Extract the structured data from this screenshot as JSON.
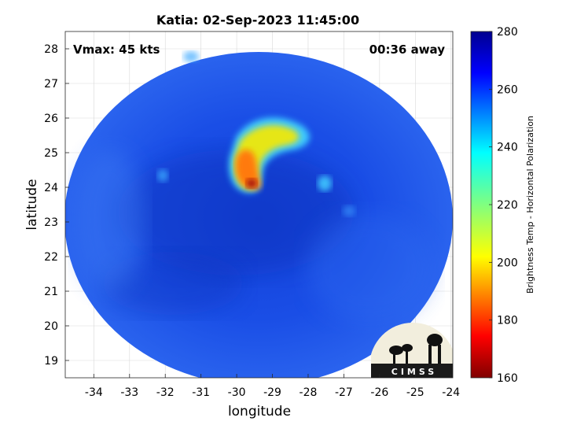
{
  "title": "Katia: 02-Sep-2023 11:45:00",
  "annotations": {
    "vmax": "Vmax: 45 kts",
    "away": "00:36 away"
  },
  "axes": {
    "xlabel": "longitude",
    "ylabel": "latitude",
    "xlim": [
      -34.8,
      -23.95
    ],
    "ylim": [
      18.5,
      28.5
    ],
    "xticks": [
      "-34",
      "-33",
      "-32",
      "-31",
      "-30",
      "-29",
      "-28",
      "-27",
      "-26",
      "-25",
      "-24"
    ],
    "xtick_values": [
      -34,
      -33,
      -32,
      -31,
      -30,
      -29,
      -28,
      -27,
      -26,
      -25,
      -24
    ],
    "yticks": [
      "19",
      "20",
      "21",
      "22",
      "23",
      "24",
      "25",
      "26",
      "27",
      "28"
    ],
    "ytick_values": [
      19,
      20,
      21,
      22,
      23,
      24,
      25,
      26,
      27,
      28
    ],
    "grid": true
  },
  "colorbar": {
    "label": "Brightness Temp - Horizontal Polarization",
    "range": [
      160,
      280
    ],
    "ticks": [
      "280",
      "260",
      "240",
      "220",
      "200",
      "180",
      "160"
    ],
    "tick_values": [
      280,
      260,
      240,
      220,
      200,
      180,
      160
    ],
    "colormap": "jet"
  },
  "storm": {
    "center_lon": -29.6,
    "center_lat": 24.0,
    "swath_center_lon": -29.35,
    "swath_center_lat": 23.65
  },
  "logo": {
    "text": "CIMSS"
  },
  "colors": {
    "background_field": "#1a52e6",
    "deep_blue": "#0d2bb0",
    "convection_yellow": "#e6e619",
    "convection_red": "#c81a0a"
  }
}
